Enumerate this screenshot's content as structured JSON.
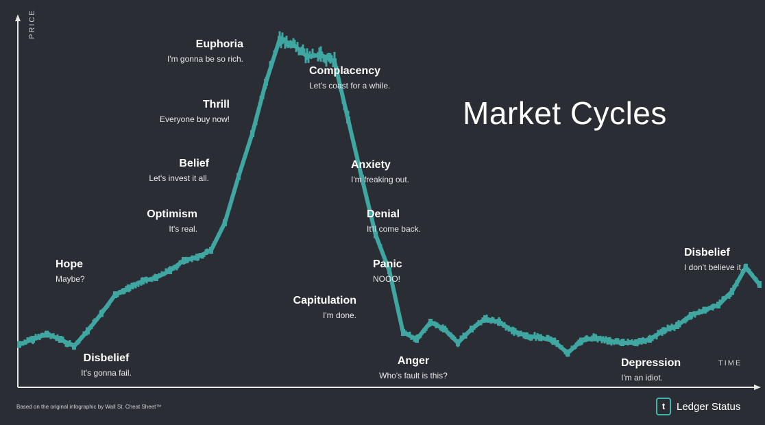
{
  "title": "Market Cycles",
  "footnote": "Based on the original infographic by Wall St. Cheat Sheet™",
  "brand": {
    "logo_letter": "t",
    "name": "Ledger Status"
  },
  "colors": {
    "background": "#2b2d35",
    "line": "#3fa6a2",
    "axis": "#e8e8e8",
    "brand_accent": "#3fb8b0"
  },
  "chart_data": {
    "type": "line",
    "xlabel": "TIME",
    "ylabel": "PRICE",
    "grid": false,
    "axis_ticks": false,
    "series": [
      {
        "x": [
          0,
          20,
          40,
          60,
          80,
          100,
          120,
          140,
          160,
          180,
          200,
          220,
          240,
          260,
          280,
          300,
          320,
          340,
          360,
          380,
          400,
          420,
          440,
          460,
          480,
          500,
          520,
          540,
          560,
          580,
          600,
          620,
          640,
          660,
          680,
          700,
          720,
          740,
          760,
          780,
          800,
          820,
          840,
          860,
          880,
          900,
          920,
          940,
          960,
          980,
          1000,
          1020,
          1040,
          1060,
          1080
        ],
        "y": [
          7,
          10,
          13,
          10,
          6,
          15,
          25,
          36,
          40,
          44,
          46,
          50,
          56,
          58,
          62,
          78,
          105,
          130,
          160,
          185,
          182,
          175,
          176,
          172,
          138,
          104,
          71,
          50,
          14,
          10,
          20,
          16,
          8,
          16,
          22,
          20,
          15,
          12,
          11,
          9,
          2,
          9,
          11,
          9,
          8,
          8,
          10,
          15,
          18,
          24,
          27,
          30,
          38,
          52,
          42
        ]
      }
    ],
    "annotations": [
      {
        "title": "Disbelief",
        "subtitle": "It's gonna fail."
      },
      {
        "title": "Hope",
        "subtitle": "Maybe?"
      },
      {
        "title": "Optimism",
        "subtitle": "It's real."
      },
      {
        "title": "Belief",
        "subtitle": "Let's invest it all."
      },
      {
        "title": "Thrill",
        "subtitle": "Everyone buy now!"
      },
      {
        "title": "Euphoria",
        "subtitle": "I'm gonna be so rich."
      },
      {
        "title": "Complacency",
        "subtitle": "Let's coast for a while."
      },
      {
        "title": "Anxiety",
        "subtitle": "I'm freaking out."
      },
      {
        "title": "Denial",
        "subtitle": "It'll come back."
      },
      {
        "title": "Panic",
        "subtitle": "NOOO!"
      },
      {
        "title": "Capitulation",
        "subtitle": "I'm done."
      },
      {
        "title": "Anger",
        "subtitle": "Who's fault is this?"
      },
      {
        "title": "Depression",
        "subtitle": "I'm an idiot."
      },
      {
        "title": "Disbelief",
        "subtitle": "I don't believe it."
      }
    ]
  }
}
